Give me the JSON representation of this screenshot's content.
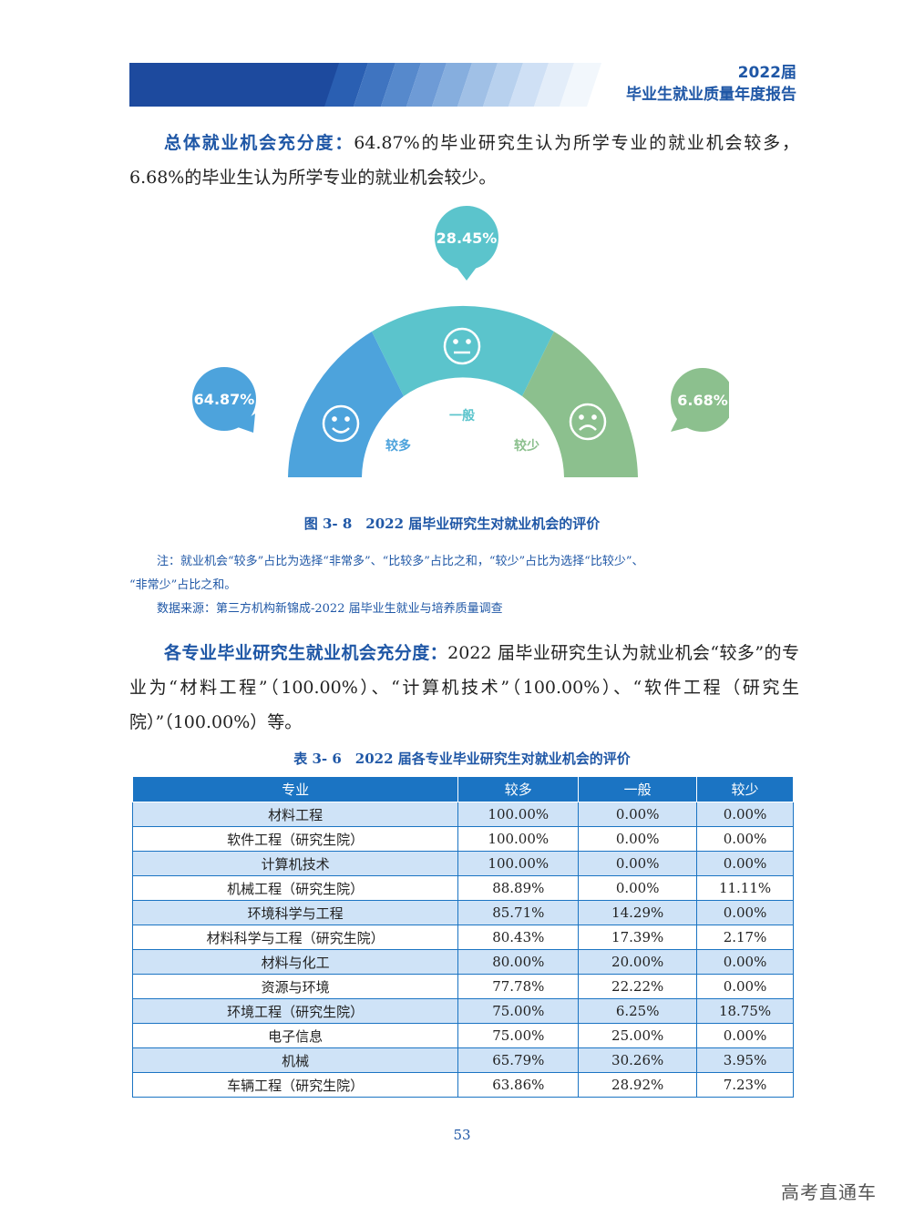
{
  "header": {
    "year": "2022届",
    "subtitle": "毕业生就业质量年度报告"
  },
  "intro": {
    "lead": "总体就业机会充分度：",
    "text": "64.87%的毕业研究生认为所学专业的就业机会较多，6.68%的毕业生认为所学专业的就业机会较少。"
  },
  "figure": {
    "callouts": {
      "more": "64.87%",
      "average": "28.45%",
      "less": "6.68%"
    },
    "labels": {
      "more": "较多",
      "average": "一般",
      "less": "较少"
    },
    "colors": {
      "more": "#4da3dc",
      "average": "#5bc4cc",
      "less": "#8cc08e"
    },
    "icons": [
      "smile-face-icon",
      "neutral-face-icon",
      "sad-face-icon"
    ],
    "caption": "图 3- 8　2022 届毕业研究生对就业机会的评价",
    "note_line1": "注：就业机会“较多”占比为选择“非常多”、“比较多”占比之和，“较少”占比为选择“比较少”、",
    "note_line2": "“非常少”占比之和。",
    "source": "数据来源：第三方机构新锦成-2022 届毕业生就业与培养质量调查"
  },
  "chart_data": {
    "type": "pie",
    "categories": [
      "较多",
      "一般",
      "较少"
    ],
    "values": [
      64.87,
      28.45,
      6.68
    ],
    "title": "图 3- 8　2022 届毕业研究生对就业机会的评价"
  },
  "section2": {
    "lead": "各专业毕业研究生就业机会充分度：",
    "text": "2022 届毕业研究生认为就业机会“较多”的专业为“材料工程”（100.00%）、“计算机技术”（100.00%）、“软件工程（研究生院）”（100.00%）等。"
  },
  "table": {
    "caption": "表 3- 6　2022 届各专业毕业研究生对就业机会的评价",
    "headers": [
      "专业",
      "较多",
      "一般",
      "较少"
    ],
    "rows": [
      [
        "材料工程",
        "100.00%",
        "0.00%",
        "0.00%"
      ],
      [
        "软件工程（研究生院）",
        "100.00%",
        "0.00%",
        "0.00%"
      ],
      [
        "计算机技术",
        "100.00%",
        "0.00%",
        "0.00%"
      ],
      [
        "机械工程（研究生院）",
        "88.89%",
        "0.00%",
        "11.11%"
      ],
      [
        "环境科学与工程",
        "85.71%",
        "14.29%",
        "0.00%"
      ],
      [
        "材料科学与工程（研究生院）",
        "80.43%",
        "17.39%",
        "2.17%"
      ],
      [
        "材料与化工",
        "80.00%",
        "20.00%",
        "0.00%"
      ],
      [
        "资源与环境",
        "77.78%",
        "22.22%",
        "0.00%"
      ],
      [
        "环境工程（研究生院）",
        "75.00%",
        "6.25%",
        "18.75%"
      ],
      [
        "电子信息",
        "75.00%",
        "25.00%",
        "0.00%"
      ],
      [
        "机械",
        "65.79%",
        "30.26%",
        "3.95%"
      ],
      [
        "车辆工程（研究生院）",
        "63.86%",
        "28.92%",
        "7.23%"
      ]
    ]
  },
  "page_number": "53",
  "watermark": "高考直通车"
}
